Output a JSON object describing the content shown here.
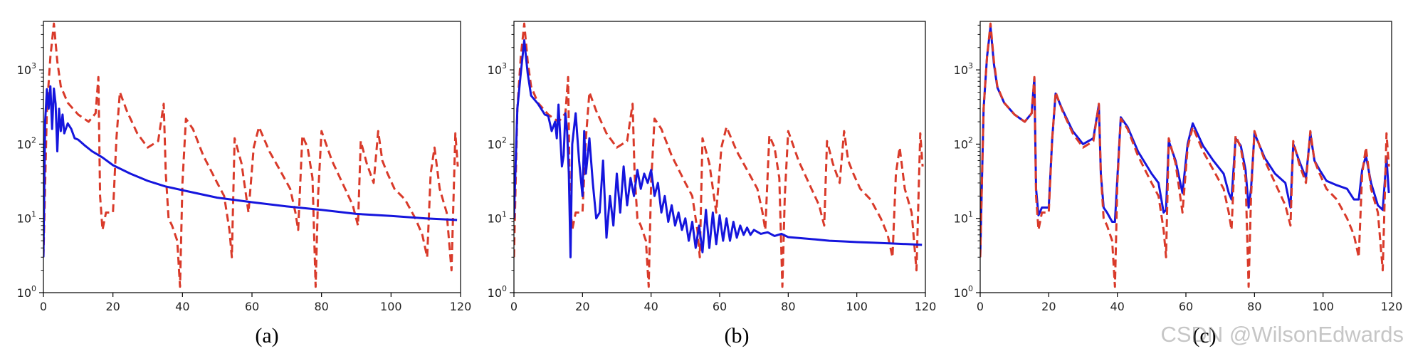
{
  "watermark": "CSDN @WilsonEdwards",
  "colors": {
    "predicted": "#1515dd",
    "reference": "#d93a2a"
  },
  "chart_data": [
    {
      "type": "line",
      "caption": "(a)",
      "xlim": [
        0,
        120
      ],
      "ylim": [
        1,
        4500
      ],
      "yscale": "log",
      "xticks": [
        0,
        20,
        40,
        60,
        80,
        100,
        120
      ],
      "yticks": [
        {
          "value": 1,
          "base": "10",
          "exp": "0"
        },
        {
          "value": 10,
          "base": "10",
          "exp": "1"
        },
        {
          "value": 100,
          "base": "10",
          "exp": "2"
        },
        {
          "value": 1000,
          "base": "10",
          "exp": "3"
        }
      ],
      "grid": false,
      "series": [
        {
          "style": "dashed",
          "color": "#d93a2a",
          "x": [
            0,
            1,
            2,
            3,
            4,
            5,
            7,
            10,
            13,
            15,
            15.8,
            16.3,
            17,
            18,
            20,
            21,
            22,
            24,
            27,
            30,
            33,
            34.6,
            35.2,
            36,
            37,
            38.5,
            39.3,
            40,
            41,
            43,
            46,
            50,
            52,
            53.5,
            54.2,
            55,
            57,
            59,
            60.5,
            62,
            65,
            68,
            71,
            72.5,
            73.3,
            74.5,
            76,
            77.4,
            78.3,
            79,
            80,
            83,
            86,
            89,
            90.5,
            91.3,
            93,
            95,
            96.3,
            97.5,
            99,
            101,
            104,
            107,
            109,
            110.4,
            111.4,
            112.5,
            114,
            116,
            117.4,
            118.5,
            119.2
          ],
          "y": [
            3,
            300,
            1500,
            4200,
            1300,
            600,
            360,
            250,
            200,
            260,
            800,
            20,
            7,
            12,
            12,
            120,
            500,
            280,
            140,
            90,
            110,
            350,
            40,
            10,
            8,
            5,
            1.2,
            30,
            220,
            160,
            70,
            30,
            20,
            7,
            3,
            120,
            55,
            12,
            90,
            170,
            80,
            45,
            25,
            12,
            7,
            130,
            90,
            35,
            1.2,
            20,
            150,
            60,
            30,
            15,
            8,
            110,
            55,
            30,
            150,
            60,
            40,
            25,
            18,
            10,
            6,
            3,
            40,
            90,
            25,
            12,
            2,
            140,
            50
          ]
        },
        {
          "style": "solid",
          "color": "#1515dd",
          "x": [
            0,
            0.5,
            1,
            1.5,
            2,
            2.5,
            3,
            3.5,
            4,
            4.5,
            5,
            5.5,
            6,
            7,
            8,
            9,
            10,
            12,
            14,
            17,
            20,
            25,
            30,
            35,
            40,
            50,
            60,
            70,
            80,
            90,
            100,
            110,
            119
          ],
          "y": [
            3,
            200,
            550,
            300,
            600,
            160,
            560,
            350,
            80,
            300,
            150,
            250,
            140,
            190,
            160,
            120,
            115,
            95,
            80,
            66,
            52,
            40,
            32,
            27,
            24,
            19,
            16.5,
            14.5,
            13,
            11.5,
            10.8,
            10,
            9.5
          ]
        }
      ]
    },
    {
      "type": "line",
      "caption": "(b)",
      "xlim": [
        0,
        120
      ],
      "ylim": [
        1,
        4500
      ],
      "yscale": "log",
      "xticks": [
        0,
        20,
        40,
        60,
        80,
        100,
        120
      ],
      "yticks": [
        {
          "value": 1,
          "base": "10",
          "exp": "0"
        },
        {
          "value": 10,
          "base": "10",
          "exp": "1"
        },
        {
          "value": 100,
          "base": "10",
          "exp": "2"
        },
        {
          "value": 1000,
          "base": "10",
          "exp": "3"
        }
      ],
      "grid": false,
      "series": [
        {
          "style": "dashed",
          "color": "#d93a2a",
          "x": [
            0,
            1,
            2,
            3,
            4,
            5,
            7,
            10,
            13,
            15,
            15.8,
            16.3,
            17,
            18,
            20,
            21,
            22,
            24,
            27,
            30,
            33,
            34.6,
            35.2,
            36,
            37,
            38.5,
            39.3,
            40,
            41,
            43,
            46,
            50,
            52,
            53.5,
            54.2,
            55,
            57,
            59,
            60.5,
            62,
            65,
            68,
            71,
            72.5,
            73.3,
            74.5,
            76,
            77.4,
            78.3,
            79,
            80,
            83,
            86,
            89,
            90.5,
            91.3,
            93,
            95,
            96.3,
            97.5,
            99,
            101,
            104,
            107,
            109,
            110.4,
            111.4,
            112.5,
            114,
            116,
            117.4,
            118.5,
            119.2
          ],
          "y": [
            3,
            300,
            1500,
            4200,
            1300,
            600,
            360,
            250,
            200,
            260,
            800,
            20,
            7,
            12,
            12,
            120,
            500,
            280,
            140,
            90,
            110,
            350,
            40,
            10,
            8,
            5,
            1.2,
            30,
            220,
            160,
            70,
            30,
            20,
            7,
            3,
            120,
            55,
            12,
            90,
            170,
            80,
            45,
            25,
            12,
            7,
            130,
            90,
            35,
            1.2,
            20,
            150,
            60,
            30,
            15,
            8,
            110,
            55,
            30,
            150,
            60,
            40,
            25,
            18,
            10,
            6,
            3,
            40,
            90,
            25,
            12,
            2,
            140,
            50
          ]
        },
        {
          "style": "solid",
          "color": "#1515dd",
          "x": [
            0,
            1,
            2,
            3,
            4,
            5,
            7,
            9,
            10,
            11,
            12,
            12.5,
            13,
            14,
            14.5,
            15,
            15.5,
            16,
            16.5,
            17,
            18,
            19,
            20,
            20.5,
            21,
            22,
            23,
            24,
            25,
            26,
            27,
            28,
            29,
            30,
            31,
            32,
            33,
            34,
            35,
            36,
            37,
            38,
            39,
            40,
            41,
            42,
            43,
            44,
            45,
            46,
            47,
            48,
            49,
            50,
            51,
            52,
            53,
            54,
            55,
            56,
            57,
            58,
            59,
            60,
            61,
            62,
            63,
            64,
            65,
            66,
            67,
            68,
            69,
            70,
            72,
            74,
            76,
            78,
            80,
            84,
            88,
            92,
            96,
            100,
            105,
            110,
            115,
            119
          ],
          "y": [
            10,
            300,
            900,
            2500,
            900,
            450,
            350,
            250,
            240,
            150,
            200,
            120,
            340,
            50,
            70,
            260,
            150,
            40,
            3,
            100,
            260,
            60,
            20,
            150,
            40,
            120,
            30,
            10,
            12,
            60,
            5.5,
            20,
            8,
            40,
            12,
            50,
            15,
            35,
            20,
            45,
            25,
            40,
            30,
            45,
            20,
            30,
            12,
            20,
            9,
            15,
            8,
            12,
            7,
            10,
            5,
            9,
            4,
            8,
            3.5,
            13,
            4,
            12,
            4.5,
            11,
            5,
            10,
            5,
            9,
            5.5,
            8,
            6,
            7.5,
            6,
            7,
            6.2,
            6.5,
            5.8,
            6.2,
            5.6,
            5.4,
            5.2,
            5.0,
            4.9,
            4.8,
            4.7,
            4.6,
            4.5,
            4.4
          ]
        }
      ]
    },
    {
      "type": "line",
      "caption": "(c)",
      "xlim": [
        0,
        120
      ],
      "ylim": [
        1,
        4500
      ],
      "yscale": "log",
      "xticks": [
        0,
        20,
        40,
        60,
        80,
        100,
        120
      ],
      "yticks": [
        {
          "value": 1,
          "base": "10",
          "exp": "0"
        },
        {
          "value": 10,
          "base": "10",
          "exp": "1"
        },
        {
          "value": 100,
          "base": "10",
          "exp": "2"
        },
        {
          "value": 1000,
          "base": "10",
          "exp": "3"
        }
      ],
      "grid": false,
      "series": [
        {
          "style": "solid",
          "color": "#1515dd",
          "x": [
            0,
            1,
            2,
            3,
            4,
            5,
            7,
            10,
            13,
            15,
            15.8,
            16.3,
            17,
            18,
            20,
            21,
            22,
            24,
            27,
            30,
            33,
            34.6,
            35.2,
            36,
            37,
            38.5,
            39.3,
            40,
            41,
            43,
            46,
            50,
            52,
            53.5,
            54.2,
            55,
            57,
            59,
            60.5,
            62,
            65,
            68,
            71,
            72.5,
            73.3,
            74.5,
            76,
            77.4,
            78.3,
            79,
            80,
            83,
            86,
            89,
            90.5,
            91.3,
            93,
            95,
            96.3,
            97.5,
            99,
            101,
            104,
            107,
            109,
            110.4,
            111.4,
            112.5,
            114,
            116,
            117.4,
            118.5,
            119.2
          ],
          "y": [
            3,
            300,
            1500,
            3800,
            1200,
            580,
            360,
            250,
            200,
            260,
            780,
            25,
            11,
            14,
            14,
            120,
            480,
            290,
            150,
            100,
            120,
            340,
            40,
            14,
            12,
            9,
            9,
            35,
            230,
            170,
            80,
            40,
            30,
            12,
            13,
            110,
            60,
            22,
            100,
            190,
            95,
            60,
            40,
            22,
            18,
            120,
            95,
            45,
            14,
            25,
            140,
            65,
            40,
            30,
            14,
            100,
            60,
            35,
            140,
            60,
            45,
            32,
            28,
            25,
            18,
            18,
            45,
            70,
            30,
            15,
            13,
            65,
            22
          ]
        },
        {
          "style": "dashed",
          "color": "#d93a2a",
          "x": [
            0,
            1,
            2,
            3,
            4,
            5,
            7,
            10,
            13,
            15,
            15.8,
            16.3,
            17,
            18,
            20,
            21,
            22,
            24,
            27,
            30,
            33,
            34.6,
            35.2,
            36,
            37,
            38.5,
            39.3,
            40,
            41,
            43,
            46,
            50,
            52,
            53.5,
            54.2,
            55,
            57,
            59,
            60.5,
            62,
            65,
            68,
            71,
            72.5,
            73.3,
            74.5,
            76,
            77.4,
            78.3,
            79,
            80,
            83,
            86,
            89,
            90.5,
            91.3,
            93,
            95,
            96.3,
            97.5,
            99,
            101,
            104,
            107,
            109,
            110.4,
            111.4,
            112.5,
            114,
            116,
            117.4,
            118.5,
            119.2
          ],
          "y": [
            3,
            300,
            1500,
            4200,
            1300,
            600,
            360,
            250,
            200,
            260,
            800,
            20,
            7,
            12,
            12,
            120,
            500,
            280,
            140,
            90,
            110,
            350,
            40,
            10,
            8,
            5,
            1.2,
            30,
            220,
            160,
            70,
            30,
            20,
            7,
            3,
            120,
            55,
            12,
            90,
            170,
            80,
            45,
            25,
            12,
            7,
            130,
            90,
            35,
            1.2,
            20,
            150,
            60,
            30,
            15,
            8,
            110,
            55,
            30,
            150,
            60,
            40,
            25,
            18,
            10,
            6,
            3,
            40,
            90,
            25,
            12,
            2,
            140,
            50
          ]
        }
      ]
    }
  ]
}
